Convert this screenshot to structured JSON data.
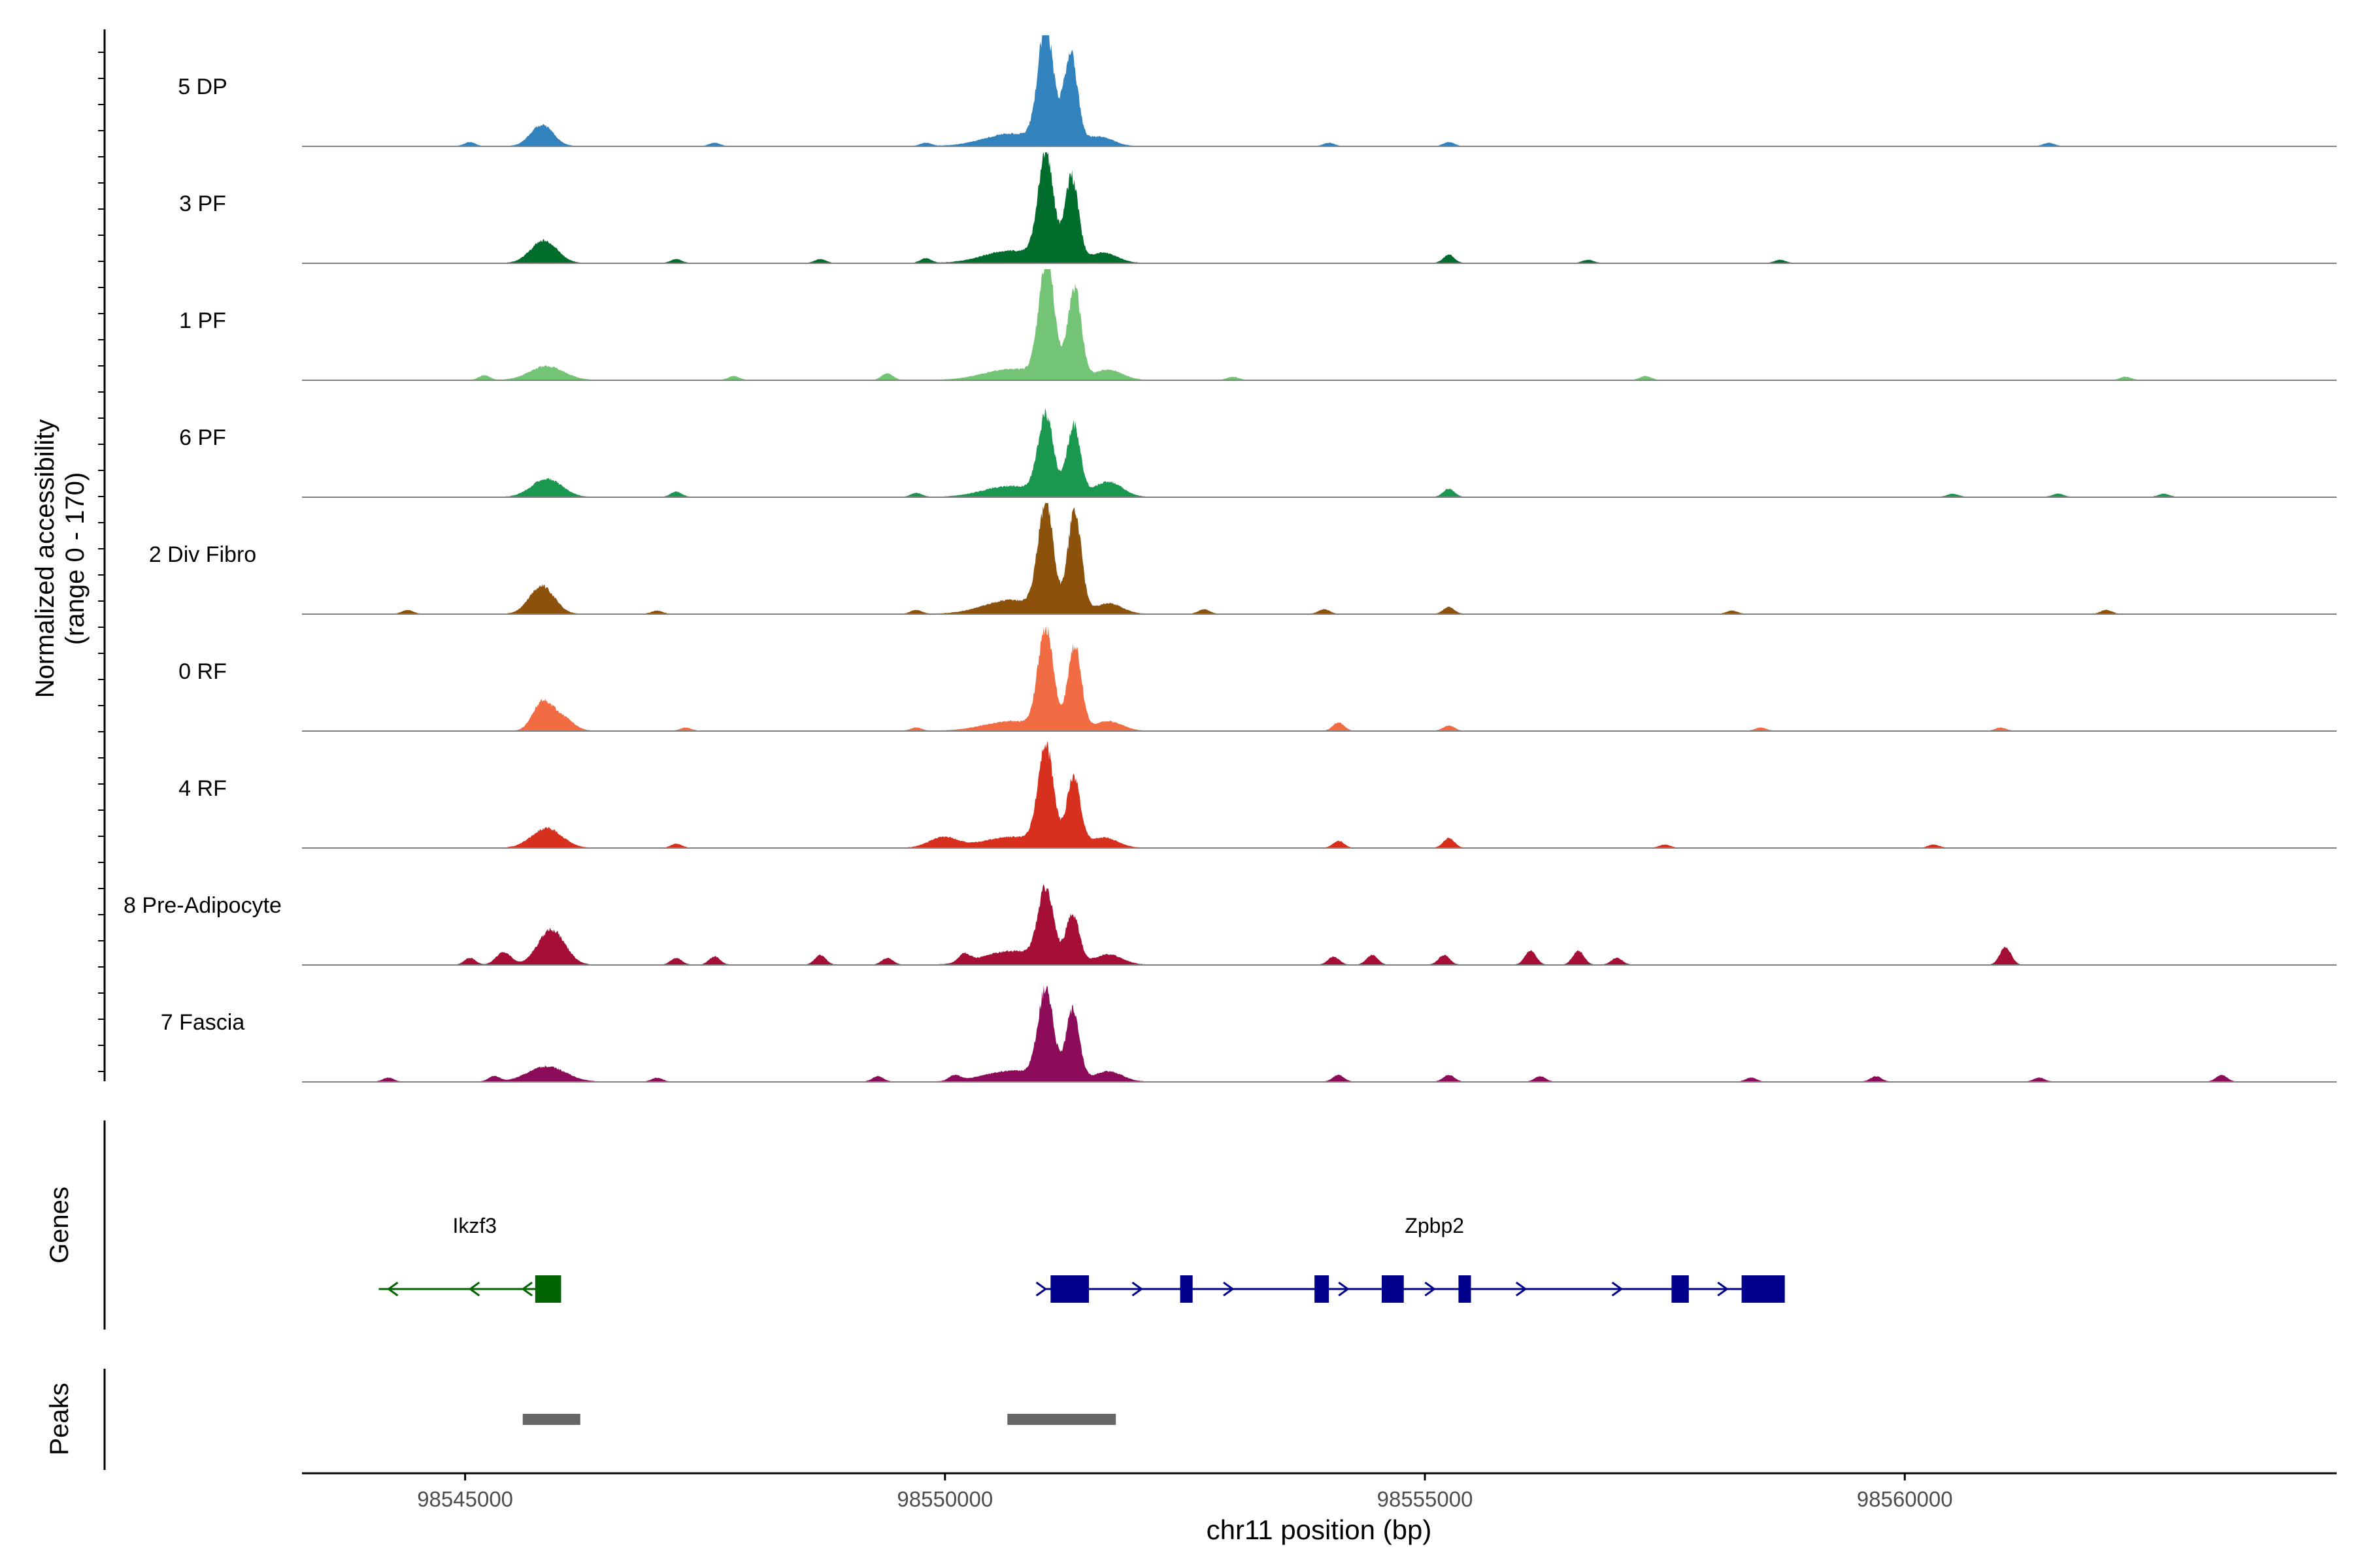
{
  "chart_data": {
    "type": "area",
    "title": "",
    "ylabel_line1": "Normalized accessibility",
    "ylabel_line2": "(range 0 - 170)",
    "ylim": [
      0,
      170
    ],
    "xlabel": "chr11 position (bp)",
    "xlim": [
      98543300,
      98564500
    ],
    "x_ticks": [
      98545000,
      98550000,
      98555000,
      98560000
    ],
    "x_tick_labels": [
      "98545000",
      "98550000",
      "98555000",
      "98560000"
    ],
    "tracks": [
      {
        "name": "5 DP",
        "color": "#3182bd",
        "peaks": [
          [
            98545800,
            30,
            120
          ],
          [
            98551050,
            165,
            80
          ],
          [
            98551310,
            130,
            70
          ],
          [
            98550700,
            18,
            300
          ],
          [
            98551600,
            14,
            150
          ]
        ],
        "small": [
          [
            98545050,
            6
          ],
          [
            98547600,
            5
          ],
          [
            98549800,
            5
          ],
          [
            98554000,
            5
          ],
          [
            98555250,
            6
          ],
          [
            98561500,
            5
          ]
        ]
      },
      {
        "name": "3 PF",
        "color": "#006d2c",
        "peaks": [
          [
            98545820,
            32,
            140
          ],
          [
            98551050,
            150,
            80
          ],
          [
            98551320,
            120,
            70
          ],
          [
            98550700,
            18,
            300
          ],
          [
            98551650,
            15,
            150
          ]
        ],
        "small": [
          [
            98547200,
            6
          ],
          [
            98548700,
            6
          ],
          [
            98549800,
            7
          ],
          [
            98555250,
            12
          ],
          [
            98556700,
            5
          ],
          [
            98558700,
            5
          ]
        ]
      },
      {
        "name": "1 PF",
        "color": "#74c476",
        "peaks": [
          [
            98545850,
            20,
            180
          ],
          [
            98551060,
            165,
            80
          ],
          [
            98551350,
            130,
            70
          ],
          [
            98550700,
            16,
            300
          ],
          [
            98551700,
            15,
            150
          ]
        ],
        "small": [
          [
            98545200,
            7
          ],
          [
            98547800,
            6
          ],
          [
            98549400,
            10
          ],
          [
            98553000,
            5
          ],
          [
            98557300,
            6
          ],
          [
            98562300,
            5
          ]
        ]
      },
      {
        "name": "6 PF",
        "color": "#1a9850",
        "peaks": [
          [
            98545850,
            26,
            160
          ],
          [
            98551050,
            110,
            80
          ],
          [
            98551340,
            100,
            70
          ],
          [
            98550700,
            16,
            300
          ],
          [
            98551700,
            22,
            150
          ]
        ],
        "small": [
          [
            98547200,
            8
          ],
          [
            98549700,
            6
          ],
          [
            98555250,
            12
          ],
          [
            98560500,
            5
          ],
          [
            98561600,
            5
          ],
          [
            98562700,
            5
          ]
        ]
      },
      {
        "name": "2 Div Fibro",
        "color": "#8c510a",
        "peaks": [
          [
            98545800,
            40,
            130
          ],
          [
            98551050,
            150,
            80
          ],
          [
            98551350,
            145,
            70
          ],
          [
            98550700,
            20,
            300
          ],
          [
            98551700,
            15,
            150
          ]
        ],
        "small": [
          [
            98544400,
            6
          ],
          [
            98547000,
            5
          ],
          [
            98549700,
            6
          ],
          [
            98552700,
            7
          ],
          [
            98553950,
            7
          ],
          [
            98555250,
            10
          ],
          [
            98558200,
            5
          ],
          [
            98562100,
            6
          ]
        ]
      },
      {
        "name": "0 RF",
        "color": "#f16c42",
        "peaks": [
          [
            98545800,
            38,
            100
          ],
          [
            98546000,
            20,
            120
          ],
          [
            98551050,
            140,
            80
          ],
          [
            98551350,
            120,
            70
          ],
          [
            98550700,
            14,
            300
          ],
          [
            98551700,
            14,
            150
          ]
        ],
        "small": [
          [
            98547300,
            5
          ],
          [
            98549700,
            5
          ],
          [
            98554100,
            12
          ],
          [
            98555250,
            8
          ],
          [
            98558500,
            5
          ],
          [
            98561000,
            5
          ]
        ]
      },
      {
        "name": "4 RF",
        "color": "#d7301f",
        "peaks": [
          [
            98545850,
            28,
            160
          ],
          [
            98551050,
            140,
            80
          ],
          [
            98551340,
            100,
            70
          ],
          [
            98550700,
            16,
            300
          ],
          [
            98551650,
            15,
            150
          ],
          [
            98549980,
            15,
            150
          ]
        ],
        "small": [
          [
            98547200,
            6
          ],
          [
            98554100,
            10
          ],
          [
            98555250,
            14
          ],
          [
            98557500,
            5
          ],
          [
            98560300,
            5
          ]
        ]
      },
      {
        "name": "8 Pre-Adipocyte",
        "color": "#a50f35",
        "peaks": [
          [
            98545900,
            50,
            140
          ],
          [
            98551050,
            100,
            80
          ],
          [
            98551330,
            70,
            70
          ],
          [
            98550700,
            20,
            300
          ],
          [
            98551700,
            15,
            150
          ],
          [
            98545400,
            18,
            80
          ]
        ],
        "small": [
          [
            98545050,
            10
          ],
          [
            98547200,
            10
          ],
          [
            98547600,
            12
          ],
          [
            98548700,
            14
          ],
          [
            98549400,
            10
          ],
          [
            98550200,
            12
          ],
          [
            98554050,
            12
          ],
          [
            98554450,
            14
          ],
          [
            98555200,
            14
          ],
          [
            98556100,
            20
          ],
          [
            98556600,
            20
          ],
          [
            98557000,
            10
          ],
          [
            98561050,
            25
          ]
        ]
      },
      {
        "name": "7 Fascia",
        "color": "#8c0c5a",
        "peaks": [
          [
            98545850,
            22,
            200
          ],
          [
            98551050,
            125,
            80
          ],
          [
            98551330,
            100,
            70
          ],
          [
            98550700,
            16,
            300
          ],
          [
            98551700,
            15,
            150
          ]
        ],
        "small": [
          [
            98544200,
            6
          ],
          [
            98545300,
            8
          ],
          [
            98547000,
            6
          ],
          [
            98549300,
            8
          ],
          [
            98550100,
            8
          ],
          [
            98554100,
            10
          ],
          [
            98555250,
            10
          ],
          [
            98556200,
            8
          ],
          [
            98558400,
            6
          ],
          [
            98559700,
            8
          ],
          [
            98561400,
            6
          ],
          [
            98563300,
            10
          ]
        ]
      }
    ],
    "genes_label": "Genes",
    "peaks_label": "Peaks",
    "genes": [
      {
        "name": "Ikzf3",
        "strand": "-",
        "color": "#006400",
        "start": 98544100,
        "end": 98546000,
        "exons": [
          [
            98545730,
            98546000
          ]
        ],
        "arrows": [
          98544250,
          98545100,
          98545650
        ]
      },
      {
        "name": "Zpbp2",
        "strand": "+",
        "color": "#00008b",
        "start": 98551050,
        "end": 98558700,
        "exons": [
          [
            98551100,
            98551500
          ],
          [
            98552450,
            98552580
          ],
          [
            98553850,
            98554000
          ],
          [
            98554550,
            98554780
          ],
          [
            98555350,
            98555480
          ],
          [
            98557570,
            98557750
          ],
          [
            98558300,
            98558750
          ]
        ],
        "arrows": [
          98551000,
          98552000,
          98552950,
          98554150,
          98555050,
          98556000,
          98557000,
          98558100
        ]
      }
    ],
    "peak_regions": [
      [
        98545600,
        98546200
      ],
      [
        98550650,
        98551780
      ]
    ]
  }
}
